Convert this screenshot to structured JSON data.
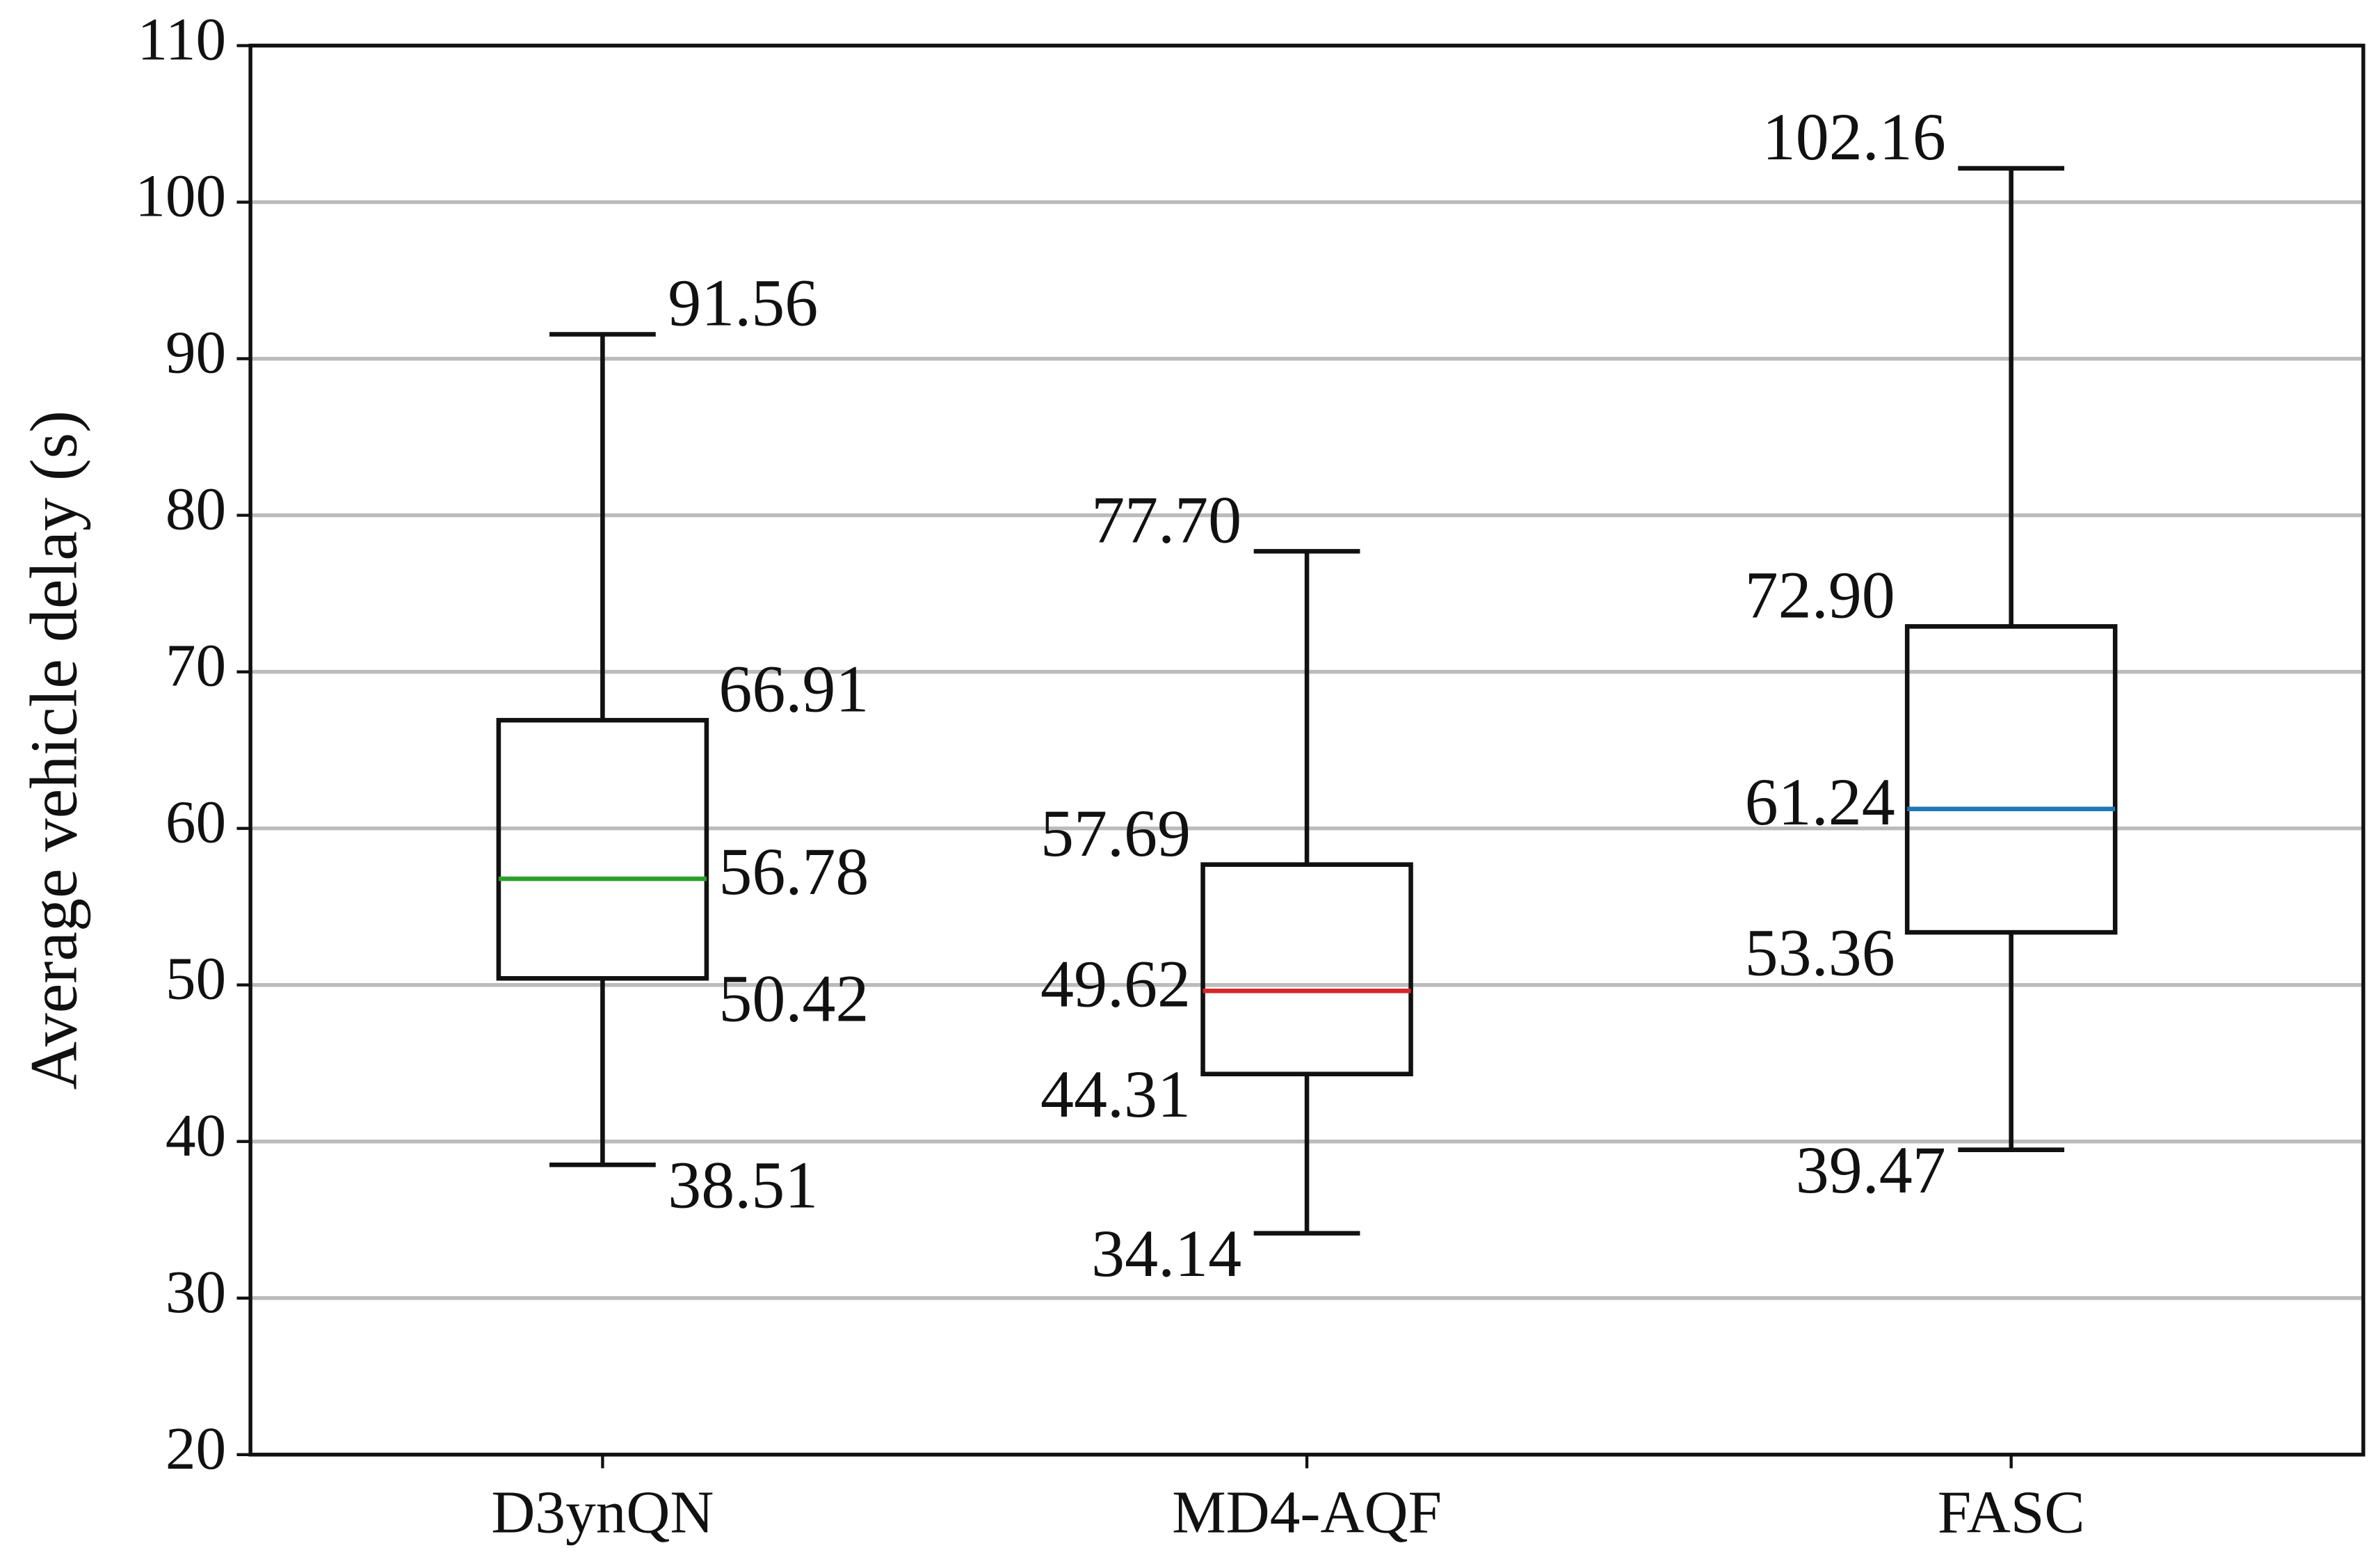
{
  "chart_data": {
    "type": "box",
    "y_label": "Average vehicle delay (s)",
    "categories": [
      "D3ynQN",
      "MD4-AQF",
      "FASC"
    ],
    "boxes": [
      {
        "color": "#2ca02c",
        "values": [
          38.51,
          50.42,
          56.78,
          66.91,
          91.56
        ],
        "value_labels": [
          "38.51",
          "50.42",
          "56.78",
          "66.91",
          "91.56"
        ]
      },
      {
        "color": "#d62728",
        "values": [
          34.14,
          44.31,
          49.62,
          57.69,
          77.7
        ],
        "value_labels": [
          "34.14",
          "44.31",
          "49.62",
          "57.69",
          "77.70"
        ]
      },
      {
        "color": "#1f77b4",
        "values": [
          39.47,
          53.36,
          61.24,
          72.9,
          102.16
        ],
        "value_labels": [
          "39.47",
          "53.36",
          "61.24",
          "72.90",
          "102.16"
        ]
      }
    ],
    "ylim": [
      20,
      110
    ],
    "yticks": [
      20,
      30,
      40,
      50,
      60,
      70,
      80,
      90,
      100,
      110
    ],
    "grid": true
  }
}
